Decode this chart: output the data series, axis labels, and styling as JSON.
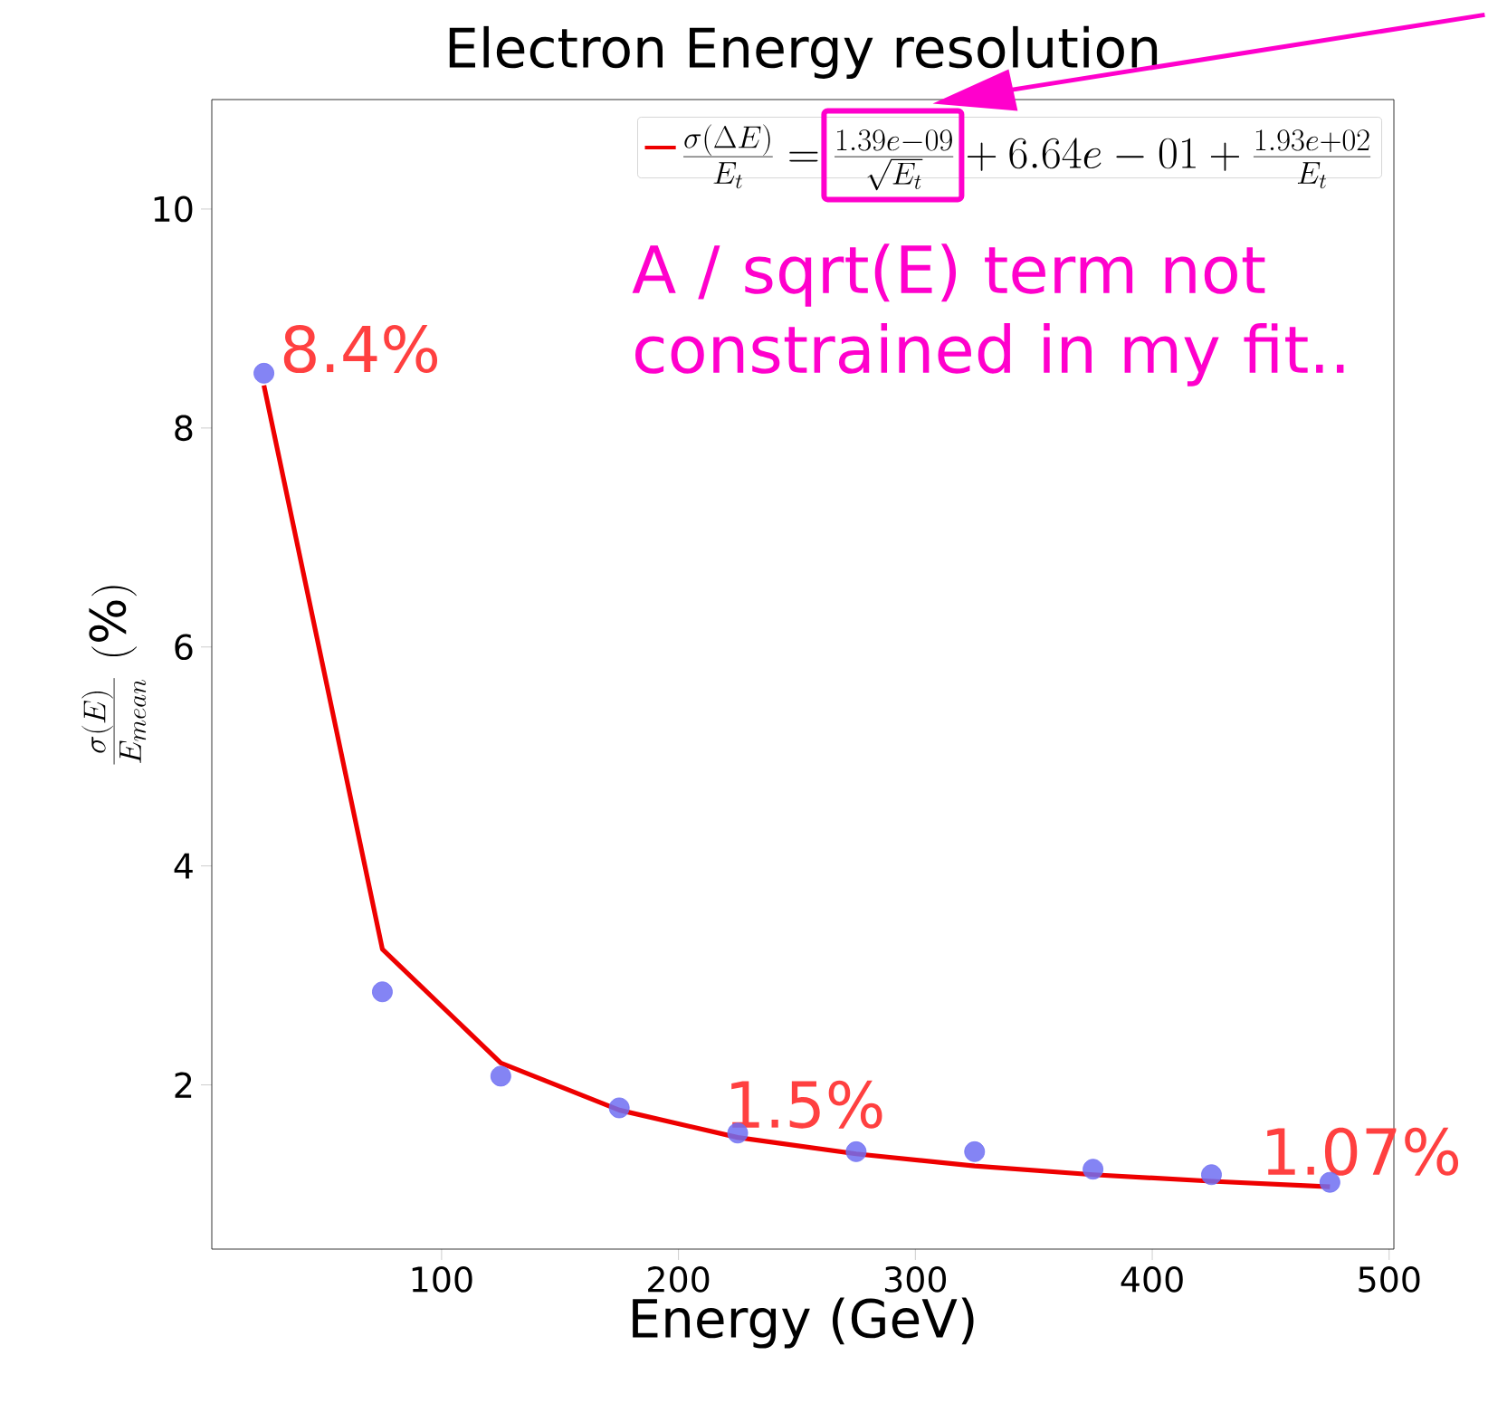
{
  "chart_data": {
    "type": "line",
    "title": "Electron Energy resolution",
    "xlabel": "Energy (GeV)",
    "ylabel": "\\frac{\\sigma(E)}{E_{mean}}\\ (\\%)",
    "xlim": [
      3,
      502
    ],
    "ylim": [
      0.5,
      11
    ],
    "xticks": [
      100,
      200,
      300,
      400,
      500
    ],
    "yticks": [
      2,
      4,
      6,
      8,
      10
    ],
    "x": [
      25,
      75,
      125,
      175,
      225,
      275,
      325,
      375,
      425,
      475
    ],
    "series": [
      {
        "type": "scatter",
        "color": "#6f6ff2",
        "marker": "circle",
        "values": [
          8.5,
          2.85,
          2.08,
          1.79,
          1.56,
          1.39,
          1.39,
          1.23,
          1.18,
          1.11
        ]
      },
      {
        "type": "line",
        "color": "#ee0000",
        "marker": "none",
        "line_style": "solid",
        "name": "\\frac{\\sigma(\\Delta E)}{E_t} = \\frac{1.39e-09}{\\sqrt{E_t}} + 6.64e-01 + \\frac{1.93e+02}{E_t}",
        "values": [
          8.39,
          3.24,
          2.2,
          1.77,
          1.52,
          1.37,
          1.26,
          1.18,
          1.12,
          1.07
        ]
      }
    ],
    "legend": "top right",
    "annotations": [
      {
        "text": "8.4%",
        "x": 25,
        "y": 8.4
      },
      {
        "text": "1.5%",
        "x": 225,
        "y": 1.5
      },
      {
        "text": "1.07%",
        "x": 475,
        "y": 1.07
      },
      "A / sqrt(E) term not constrained in my fit.."
    ]
  }
}
